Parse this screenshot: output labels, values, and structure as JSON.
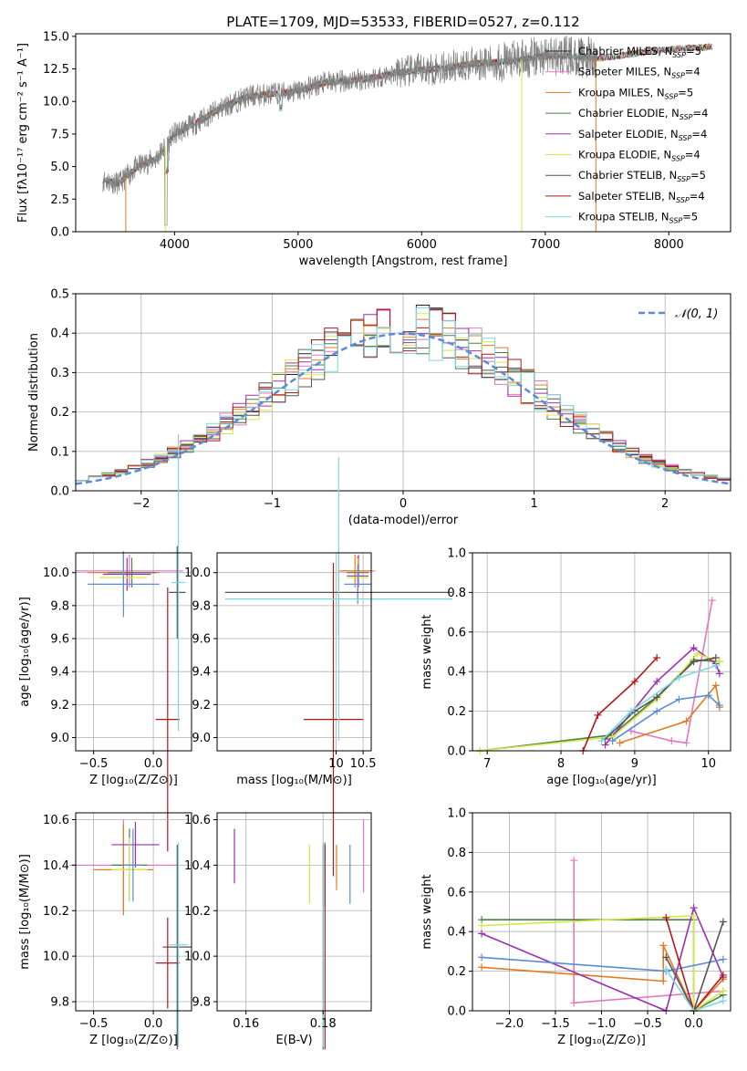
{
  "chart_data": [
    {
      "id": "spectrum",
      "type": "line",
      "title": "PLATE=1709, MJD=53533, FIBERID=0527, z=0.112",
      "xlabel": "wavelength [Angstrom, rest frame]",
      "ylabel": "Flux [fλ10⁻¹⁷ erg cm⁻² s⁻¹ A⁻¹]",
      "xlim": [
        3200,
        8500
      ],
      "ylim": [
        0,
        15.2
      ],
      "xticks": [
        4000,
        5000,
        6000,
        7000,
        8000
      ],
      "yticks": [
        0.0,
        2.5,
        5.0,
        7.5,
        10.0,
        12.5,
        15.0
      ],
      "grid": false,
      "legend_position": "right",
      "continuum": {
        "x": [
          3400,
          3550,
          3700,
          3850,
          4000,
          4200,
          4400,
          4600,
          4800,
          5000,
          5200,
          5400,
          5600,
          5800,
          6000,
          6200,
          6400,
          6600,
          6800,
          7000,
          7200,
          7400,
          7600,
          7800,
          8000,
          8200,
          8350
        ],
        "y": [
          4.0,
          3.7,
          5.0,
          5.6,
          7.5,
          8.5,
          9.6,
          10.4,
          10.6,
          10.8,
          11.4,
          11.6,
          11.8,
          12.2,
          12.4,
          12.6,
          12.9,
          13.0,
          13.2,
          13.5,
          13.5,
          13.3,
          13.5,
          13.8,
          14.0,
          14.1,
          14.2
        ]
      },
      "observed_range": [
        3420,
        7420
      ],
      "legend": [
        {
          "text": "Chabrier MILES, N",
          "sub": "SSP",
          "val": "=5",
          "color": "#222222"
        },
        {
          "text": "Salpeter MILES, N",
          "sub": "SSP",
          "val": "=4",
          "color": "#e377c2"
        },
        {
          "text": "Kroupa MILES, N",
          "sub": "SSP",
          "val": "=5",
          "color": "#e07b22"
        },
        {
          "text": "Chabrier ELODIE, N",
          "sub": "SSP",
          "val": "=4",
          "color": "#4a7f45"
        },
        {
          "text": "Salpeter ELODIE, N",
          "sub": "SSP",
          "val": "=4",
          "color": "#9b30b0"
        },
        {
          "text": "Kroupa ELODIE, N",
          "sub": "SSP",
          "val": "=4",
          "color": "#d4e84a"
        },
        {
          "text": "Chabrier STELIB, N",
          "sub": "SSP",
          "val": "=5",
          "color": "#555555"
        },
        {
          "text": "Salpeter STELIB, N",
          "sub": "SSP",
          "val": "=4",
          "color": "#b01818"
        },
        {
          "text": "Kroupa STELIB, N",
          "sub": "SSP",
          "val": "=5",
          "color": "#7fd6e0"
        }
      ]
    },
    {
      "id": "residuals",
      "type": "line",
      "xlabel": "(data-model)/error",
      "ylabel": "Normed distribution",
      "xlim": [
        -2.5,
        2.5
      ],
      "ylim": [
        0,
        0.5
      ],
      "xticks": [
        -2,
        -1,
        0,
        1,
        2
      ],
      "xtick_labels": [
        "−2",
        "−1",
        "0",
        "1",
        "2"
      ],
      "yticks": [
        0.0,
        0.1,
        0.2,
        0.3,
        0.4,
        0.5
      ],
      "grid": true,
      "legend_position": "top-right",
      "gaussian_label": "𝒩(0, 1)",
      "gaussian_color": "#5b8bd6",
      "bin_width": 0.1,
      "hist_colors": [
        "#222222",
        "#e377c2",
        "#e07b22",
        "#4a7f45",
        "#9b30b0",
        "#d4e84a",
        "#555555",
        "#b01818",
        "#7fd6e0"
      ]
    },
    {
      "id": "age-vs-Z",
      "type": "scatter",
      "xlabel": "Z [log₁₀(Z/Z⊙)]",
      "ylabel": "age  [log₁₀(age/yr)]",
      "xlim": [
        -0.65,
        0.32
      ],
      "ylim": [
        8.92,
        10.12
      ],
      "xticks": [
        -0.5,
        0.0
      ],
      "xtick_labels": [
        "−0.5",
        "0.0"
      ],
      "yticks": [
        9.0,
        9.2,
        9.4,
        9.6,
        9.8,
        10.0
      ],
      "grid": true,
      "crosses": [
        {
          "x": -0.2,
          "y": 10.01,
          "xerr": 0.45,
          "yerr": 0.1,
          "color": "#e377c2"
        },
        {
          "x": -0.25,
          "y": 10.0,
          "xerr": 0.3,
          "yerr": 0.12,
          "color": "#e07b22"
        },
        {
          "x": -0.18,
          "y": 10.0,
          "xerr": 0.2,
          "yerr": 0.09,
          "color": "#4a7f45"
        },
        {
          "x": -0.22,
          "y": 9.99,
          "xerr": 0.2,
          "yerr": 0.1,
          "color": "#9b30b0"
        },
        {
          "x": -0.25,
          "y": 9.97,
          "xerr": 0.2,
          "yerr": 0.12,
          "color": "#d4e84a"
        },
        {
          "x": -0.25,
          "y": 9.93,
          "xerr": 0.3,
          "yerr": 0.2,
          "color": "#5b8bd6"
        },
        {
          "x": 0.2,
          "y": 9.88,
          "xerr": 0.07,
          "yerr": 0.28,
          "color": "#555555"
        },
        {
          "x": 0.12,
          "y": 9.11,
          "xerr": 0.1,
          "yerr": 0.8,
          "color": "#b01818"
        },
        {
          "x": 0.21,
          "y": 9.94,
          "xerr": 0.06,
          "yerr": 0.9,
          "color": "#7fd6e0"
        }
      ]
    },
    {
      "id": "age-vs-mass",
      "type": "scatter",
      "xlabel": "mass [log₁₀(M/M⊙)]",
      "xlim": [
        7.8,
        10.65
      ],
      "ylim": [
        8.92,
        10.12
      ],
      "xticks": [
        10.0,
        10.5
      ],
      "yticks": [
        9.0,
        9.2,
        9.4,
        9.6,
        9.8,
        10.0
      ],
      "grid": true,
      "crosses": [
        {
          "x": 10.42,
          "y": 10.01,
          "xerr": 0.3,
          "yerr": 0.1,
          "color": "#e377c2"
        },
        {
          "x": 10.35,
          "y": 10.01,
          "xerr": 0.3,
          "yerr": 0.1,
          "color": "#e07b22"
        },
        {
          "x": 10.4,
          "y": 10.0,
          "xerr": 0.2,
          "yerr": 0.1,
          "color": "#4a7f45"
        },
        {
          "x": 10.4,
          "y": 9.98,
          "xerr": 0.2,
          "yerr": 0.12,
          "color": "#9b30b0"
        },
        {
          "x": 10.4,
          "y": 9.97,
          "xerr": 0.2,
          "yerr": 0.12,
          "color": "#d4e84a"
        },
        {
          "x": 10.4,
          "y": 9.93,
          "xerr": 0.25,
          "yerr": 0.12,
          "color": "#5b8bd6"
        },
        {
          "x": 10.05,
          "y": 9.88,
          "xerr": 2.1,
          "yerr": 0.25,
          "color": "#555555"
        },
        {
          "x": 9.95,
          "y": 9.11,
          "xerr": 0.55,
          "yerr": 0.95,
          "color": "#b01818"
        },
        {
          "x": 10.05,
          "y": 9.84,
          "xerr": 2.1,
          "yerr": 0.86,
          "color": "#7fd6e0"
        }
      ]
    },
    {
      "id": "weight-vs-age",
      "type": "line",
      "xlabel": "age  [log₁₀(age/yr)]",
      "ylabel": "mass weight",
      "xlim": [
        6.8,
        10.3
      ],
      "ylim": [
        0,
        1.0
      ],
      "xticks": [
        7,
        8,
        9,
        10
      ],
      "yticks": [
        0.0,
        0.2,
        0.4,
        0.6,
        0.8,
        1.0
      ],
      "grid": true,
      "series": [
        {
          "color": "#e377c2",
          "points": [
            [
              8.95,
              0.1
            ],
            [
              9.5,
              0.05
            ],
            [
              9.7,
              0.04
            ],
            [
              10.05,
              0.76
            ]
          ]
        },
        {
          "color": "#e07b22",
          "points": [
            [
              8.8,
              0.04
            ],
            [
              9.7,
              0.15
            ],
            [
              10.1,
              0.33
            ],
            [
              10.15,
              0.22
            ]
          ]
        },
        {
          "color": "#4a7f45",
          "points": [
            [
              6.9,
              0.0
            ],
            [
              8.7,
              0.08
            ],
            [
              9.3,
              0.27
            ],
            [
              9.8,
              0.46
            ],
            [
              10.15,
              0.45
            ]
          ]
        },
        {
          "color": "#9b30b0",
          "points": [
            [
              8.6,
              0.03
            ],
            [
              9.3,
              0.35
            ],
            [
              9.8,
              0.52
            ],
            [
              10.1,
              0.44
            ],
            [
              10.15,
              0.39
            ]
          ]
        },
        {
          "color": "#d4e84a",
          "points": [
            [
              6.9,
              0.0
            ],
            [
              8.7,
              0.07
            ],
            [
              9.3,
              0.26
            ],
            [
              9.85,
              0.49
            ],
            [
              10.15,
              0.45
            ]
          ]
        },
        {
          "color": "#5b8bd6",
          "points": [
            [
              8.7,
              0.05
            ],
            [
              9.3,
              0.2
            ],
            [
              9.6,
              0.26
            ],
            [
              10.0,
              0.28
            ],
            [
              10.15,
              0.23
            ]
          ]
        },
        {
          "color": "#555555",
          "points": [
            [
              8.6,
              0.06
            ],
            [
              9.0,
              0.2
            ],
            [
              9.3,
              0.27
            ],
            [
              9.8,
              0.45
            ],
            [
              10.1,
              0.47
            ]
          ]
        },
        {
          "color": "#b01818",
          "points": [
            [
              8.3,
              0.0
            ],
            [
              8.5,
              0.18
            ],
            [
              9.0,
              0.35
            ],
            [
              9.3,
              0.47
            ]
          ]
        },
        {
          "color": "#7fd6e0",
          "points": [
            [
              8.55,
              0.05
            ],
            [
              8.95,
              0.2
            ],
            [
              9.6,
              0.37
            ],
            [
              10.1,
              0.43
            ]
          ]
        }
      ]
    },
    {
      "id": "mass-vs-Z",
      "type": "scatter",
      "xlabel": "Z [log₁₀(Z/Z⊙)]",
      "ylabel": "mass [log₁₀(M/M⊙)]",
      "xlim": [
        -0.65,
        0.32
      ],
      "ylim": [
        9.76,
        10.63
      ],
      "xticks": [
        -0.5,
        0.0
      ],
      "xtick_labels": [
        "−0.5",
        "0.0"
      ],
      "yticks": [
        9.8,
        10.0,
        10.2,
        10.4,
        10.6
      ],
      "grid": true,
      "crosses": [
        {
          "x": -0.25,
          "y": 10.4,
          "xerr": 0.45,
          "yerr": 0.2,
          "color": "#e377c2"
        },
        {
          "x": -0.25,
          "y": 10.38,
          "xerr": 0.25,
          "yerr": 0.2,
          "color": "#e07b22"
        },
        {
          "x": -0.2,
          "y": 10.4,
          "xerr": 0.15,
          "yerr": 0.16,
          "color": "#4a7f45"
        },
        {
          "x": -0.15,
          "y": 10.49,
          "xerr": 0.2,
          "yerr": 0.1,
          "color": "#9b30b0"
        },
        {
          "x": -0.2,
          "y": 10.38,
          "xerr": 0.15,
          "yerr": 0.14,
          "color": "#d4e84a"
        },
        {
          "x": -0.17,
          "y": 10.4,
          "xerr": 0.08,
          "yerr": 0.16,
          "color": "#5b8bd6"
        },
        {
          "x": 0.2,
          "y": 10.04,
          "xerr": 0.12,
          "yerr": 0.45,
          "color": "#555555"
        },
        {
          "x": 0.12,
          "y": 9.97,
          "xerr": 0.1,
          "yerr": 0.2,
          "color": "#b01818"
        },
        {
          "x": 0.21,
          "y": 10.05,
          "xerr": 0.08,
          "yerr": 0.45,
          "color": "#7fd6e0"
        }
      ]
    },
    {
      "id": "mass-vs-ebv",
      "type": "scatter",
      "xlabel": "E(B-V)",
      "xlim": [
        0.1525,
        0.1925
      ],
      "ylim": [
        9.76,
        10.63
      ],
      "xticks": [
        0.16,
        0.18
      ],
      "yticks": [
        9.8,
        10.0,
        10.2,
        10.4,
        10.6
      ],
      "grid": true,
      "crosses": [
        {
          "x": 0.1905,
          "y": 10.44,
          "xerr": 0.0,
          "yerr": 0.16,
          "color": "#e377c2"
        },
        {
          "x": 0.1835,
          "y": 10.39,
          "xerr": 0.0,
          "yerr": 0.1,
          "color": "#e07b22"
        },
        {
          "x": 0.1805,
          "y": 10.36,
          "xerr": 0.0,
          "yerr": 0.14,
          "color": "#4a7f45"
        },
        {
          "x": 0.157,
          "y": 10.44,
          "xerr": 0.0,
          "yerr": 0.12,
          "color": "#9b30b0"
        },
        {
          "x": 0.1765,
          "y": 10.36,
          "xerr": 0.0,
          "yerr": 0.13,
          "color": "#d4e84a"
        },
        {
          "x": 0.187,
          "y": 10.36,
          "xerr": 0.0,
          "yerr": 0.13,
          "color": "#5b8bd6"
        },
        {
          "x": 0.18,
          "y": 10.04,
          "xerr": 0.0,
          "yerr": 0.45,
          "color": "#555555"
        },
        {
          "x": 0.1805,
          "y": 10.04,
          "xerr": 0.0,
          "yerr": 0.45,
          "color": "#b01818"
        },
        {
          "x": 0.18,
          "y": 10.05,
          "xerr": 0.0,
          "yerr": 0.45,
          "color": "#7fd6e0"
        }
      ]
    },
    {
      "id": "weight-vs-Z",
      "type": "line",
      "xlabel": "Z [log₁₀(Z/Z⊙)]",
      "ylabel": "mass weight",
      "xlim": [
        -2.4,
        0.4
      ],
      "ylim": [
        0,
        1.0
      ],
      "xticks": [
        -2.0,
        -1.5,
        -1.0,
        -0.5,
        0.0
      ],
      "xtick_labels": [
        "−2.0",
        "−1.5",
        "−1.0",
        "−0.5",
        "0.0"
      ],
      "yticks": [
        0.0,
        0.2,
        0.4,
        0.6,
        0.8,
        1.0
      ],
      "grid": true,
      "series": [
        {
          "color": "#e377c2",
          "points": [
            [
              -1.3,
              0.76
            ],
            [
              -1.3,
              0.04
            ],
            [
              0.32,
              0.1
            ]
          ]
        },
        {
          "color": "#e07b22",
          "points": [
            [
              -2.3,
              0.22
            ],
            [
              -0.33,
              0.15
            ],
            [
              -0.33,
              0.33
            ],
            [
              0.0,
              0.0
            ],
            [
              0.32,
              0.16
            ]
          ]
        },
        {
          "color": "#4a7f45",
          "points": [
            [
              -2.3,
              0.46
            ],
            [
              0.0,
              0.46
            ],
            [
              0.0,
              0.0
            ],
            [
              0.32,
              0.08
            ]
          ]
        },
        {
          "color": "#9b30b0",
          "points": [
            [
              -2.3,
              0.39
            ],
            [
              -0.3,
              0.0
            ],
            [
              0.0,
              0.52
            ],
            [
              0.32,
              0.17
            ]
          ]
        },
        {
          "color": "#d4e84a",
          "points": [
            [
              -2.3,
              0.43
            ],
            [
              0.0,
              0.48
            ],
            [
              0.0,
              0.0
            ],
            [
              0.32,
              0.1
            ]
          ]
        },
        {
          "color": "#5b8bd6",
          "points": [
            [
              -2.3,
              0.27
            ],
            [
              -0.3,
              0.2
            ],
            [
              0.32,
              0.26
            ]
          ]
        },
        {
          "color": "#555555",
          "points": [
            [
              -0.3,
              0.27
            ],
            [
              0.0,
              0.0
            ],
            [
              0.32,
              0.45
            ]
          ]
        },
        {
          "color": "#b01818",
          "points": [
            [
              -0.3,
              0.47
            ],
            [
              0.0,
              0.0
            ],
            [
              0.32,
              0.18
            ]
          ]
        },
        {
          "color": "#7fd6e0",
          "points": [
            [
              -0.3,
              0.21
            ],
            [
              0.0,
              0.0
            ],
            [
              0.32,
              0.05
            ]
          ]
        }
      ]
    }
  ]
}
